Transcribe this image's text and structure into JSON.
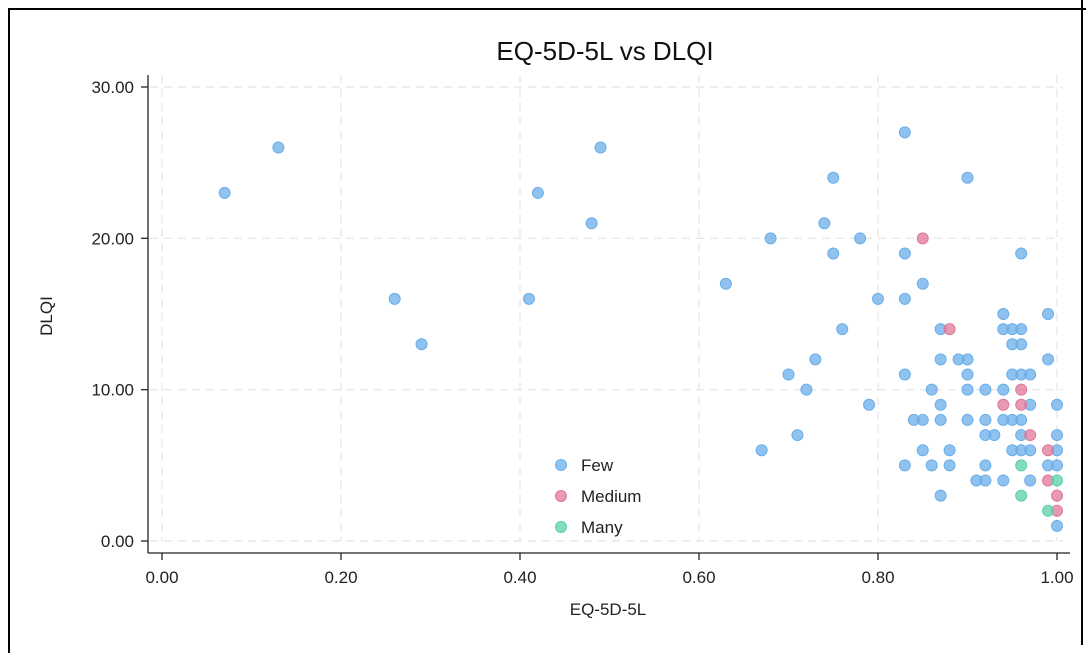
{
  "chart_data": {
    "type": "scatter",
    "title": "EQ-5D-5L vs DLQI",
    "xlabel": "EQ-5D-5L",
    "ylabel": "DLQI",
    "xlim": [
      0,
      1
    ],
    "ylim": [
      0,
      30
    ],
    "xticks": [
      "0.00",
      "0.20",
      "0.40",
      "0.60",
      "0.80",
      "1.00"
    ],
    "yticks": [
      "0.00",
      "10.00",
      "20.00",
      "30.00"
    ],
    "grid": true,
    "legend_position": "bottom-center",
    "series": [
      {
        "name": "Few",
        "color": "#6aaeea",
        "points": [
          [
            0.07,
            23
          ],
          [
            0.13,
            26
          ],
          [
            0.26,
            16
          ],
          [
            0.29,
            13
          ],
          [
            0.41,
            16
          ],
          [
            0.42,
            23
          ],
          [
            0.48,
            21
          ],
          [
            0.49,
            26
          ],
          [
            0.63,
            17
          ],
          [
            0.67,
            6
          ],
          [
            0.68,
            20
          ],
          [
            0.7,
            11
          ],
          [
            0.71,
            7
          ],
          [
            0.72,
            10
          ],
          [
            0.73,
            12
          ],
          [
            0.74,
            21
          ],
          [
            0.75,
            24
          ],
          [
            0.75,
            19
          ],
          [
            0.76,
            14
          ],
          [
            0.78,
            20
          ],
          [
            0.79,
            9
          ],
          [
            0.8,
            16
          ],
          [
            0.83,
            27
          ],
          [
            0.83,
            19
          ],
          [
            0.83,
            16
          ],
          [
            0.83,
            11
          ],
          [
            0.83,
            5
          ],
          [
            0.84,
            8
          ],
          [
            0.85,
            17
          ],
          [
            0.85,
            8
          ],
          [
            0.85,
            6
          ],
          [
            0.86,
            10
          ],
          [
            0.86,
            5
          ],
          [
            0.87,
            14
          ],
          [
            0.87,
            12
          ],
          [
            0.87,
            9
          ],
          [
            0.87,
            8
          ],
          [
            0.87,
            3
          ],
          [
            0.88,
            6
          ],
          [
            0.88,
            5
          ],
          [
            0.89,
            12
          ],
          [
            0.9,
            24
          ],
          [
            0.9,
            12
          ],
          [
            0.9,
            11
          ],
          [
            0.9,
            10
          ],
          [
            0.9,
            8
          ],
          [
            0.91,
            4
          ],
          [
            0.92,
            10
          ],
          [
            0.92,
            8
          ],
          [
            0.92,
            7
          ],
          [
            0.92,
            5
          ],
          [
            0.92,
            4
          ],
          [
            0.93,
            7
          ],
          [
            0.94,
            15
          ],
          [
            0.94,
            14
          ],
          [
            0.94,
            10
          ],
          [
            0.94,
            8
          ],
          [
            0.94,
            4
          ],
          [
            0.95,
            14
          ],
          [
            0.95,
            13
          ],
          [
            0.95,
            11
          ],
          [
            0.95,
            8
          ],
          [
            0.95,
            6
          ],
          [
            0.96,
            19
          ],
          [
            0.96,
            14
          ],
          [
            0.96,
            13
          ],
          [
            0.96,
            11
          ],
          [
            0.96,
            8
          ],
          [
            0.96,
            7
          ],
          [
            0.96,
            6
          ],
          [
            0.97,
            11
          ],
          [
            0.97,
            9
          ],
          [
            0.97,
            6
          ],
          [
            0.97,
            4
          ],
          [
            0.99,
            15
          ],
          [
            0.99,
            12
          ],
          [
            0.99,
            5
          ],
          [
            1.0,
            9
          ],
          [
            1.0,
            7
          ],
          [
            1.0,
            6
          ],
          [
            1.0,
            5
          ],
          [
            1.0,
            1
          ]
        ]
      },
      {
        "name": "Medium",
        "color": "#e07898",
        "points": [
          [
            0.85,
            20
          ],
          [
            0.88,
            14
          ],
          [
            0.94,
            9
          ],
          [
            0.96,
            10
          ],
          [
            0.96,
            9
          ],
          [
            0.97,
            7
          ],
          [
            0.99,
            6
          ],
          [
            0.99,
            4
          ],
          [
            1.0,
            3
          ],
          [
            1.0,
            2
          ]
        ]
      },
      {
        "name": "Many",
        "color": "#5cd0a6",
        "points": [
          [
            0.96,
            5
          ],
          [
            0.96,
            3
          ],
          [
            0.99,
            2
          ],
          [
            1.0,
            4
          ]
        ]
      }
    ]
  }
}
